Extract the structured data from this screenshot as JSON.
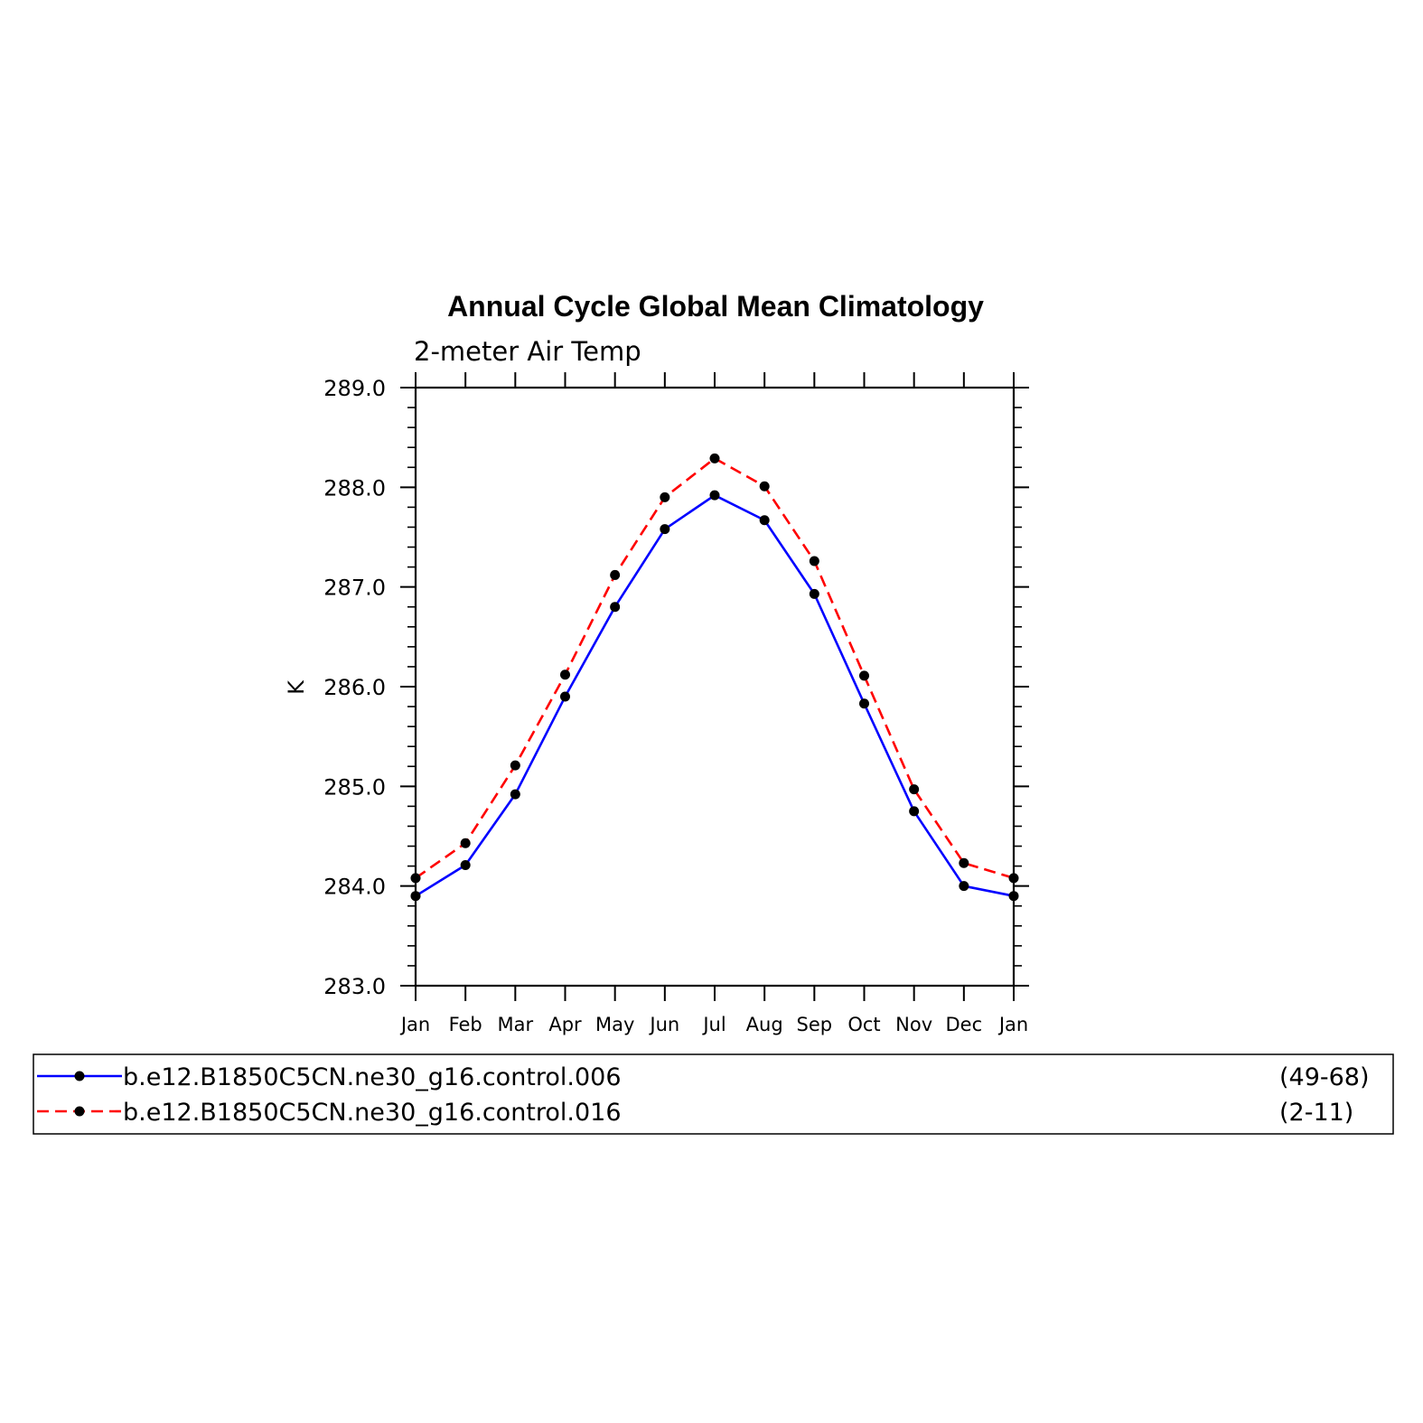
{
  "chart_data": {
    "type": "line",
    "title": "Annual Cycle Global Mean Climatology",
    "subtitle": "2-meter Air Temp",
    "ylabel": "K",
    "xlabel": "",
    "categories": [
      "Jan",
      "Feb",
      "Mar",
      "Apr",
      "May",
      "Jun",
      "Jul",
      "Aug",
      "Sep",
      "Oct",
      "Nov",
      "Dec",
      "Jan"
    ],
    "ylim": [
      283.0,
      289.0
    ],
    "yticks": [
      "283.0",
      "284.0",
      "285.0",
      "286.0",
      "287.0",
      "288.0",
      "289.0"
    ],
    "y_minor_step": 0.2,
    "grid": false,
    "legend_position": "below",
    "series": [
      {
        "name": "b.e12.B1850C5CN.ne30_g16.control.006",
        "years": "(49-68)",
        "color": "#0000ff",
        "dash": "solid",
        "values": [
          283.9,
          284.21,
          284.92,
          285.9,
          286.8,
          287.58,
          287.92,
          287.67,
          286.93,
          285.83,
          284.75,
          284.0,
          283.9
        ]
      },
      {
        "name": "b.e12.B1850C5CN.ne30_g16.control.016",
        "years": "(2-11)",
        "color": "#ff0000",
        "dash": "dashed",
        "values": [
          284.08,
          284.43,
          285.21,
          286.12,
          287.12,
          287.9,
          288.29,
          288.01,
          287.26,
          286.11,
          284.97,
          284.23,
          284.08
        ]
      }
    ]
  }
}
